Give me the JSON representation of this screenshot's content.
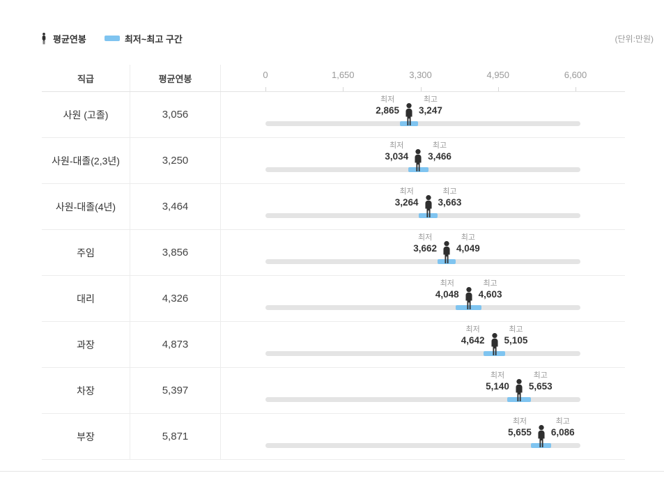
{
  "legend": {
    "avg_label": "평균연봉",
    "range_label": "최저~최고 구간",
    "unit_label": "(단위:만원)"
  },
  "table": {
    "col_position": "직급",
    "col_avg": "평균연봉"
  },
  "chart_data": {
    "type": "bar",
    "variant": "horizontal-range-with-average-marker",
    "unit": "만원",
    "min_label": "최저",
    "max_label": "최고",
    "axis": {
      "min": 0,
      "max": 6600,
      "ticks": [
        0,
        1650,
        3300,
        4950,
        6600
      ],
      "tick_labels": [
        "0",
        "1,650",
        "3,300",
        "4,950",
        "6,600"
      ]
    },
    "rows": [
      {
        "position": "사원 (고졸)",
        "avg": 3056,
        "avg_text": "3,056",
        "min": 2865,
        "min_text": "2,865",
        "max": 3247,
        "max_text": "3,247"
      },
      {
        "position": "사원-대졸(2,3년)",
        "avg": 3250,
        "avg_text": "3,250",
        "min": 3034,
        "min_text": "3,034",
        "max": 3466,
        "max_text": "3,466"
      },
      {
        "position": "사원-대졸(4년)",
        "avg": 3464,
        "avg_text": "3,464",
        "min": 3264,
        "min_text": "3,264",
        "max": 3663,
        "max_text": "3,663"
      },
      {
        "position": "주임",
        "avg": 3856,
        "avg_text": "3,856",
        "min": 3662,
        "min_text": "3,662",
        "max": 4049,
        "max_text": "4,049"
      },
      {
        "position": "대리",
        "avg": 4326,
        "avg_text": "4,326",
        "min": 4048,
        "min_text": "4,048",
        "max": 4603,
        "max_text": "4,603"
      },
      {
        "position": "과장",
        "avg": 4873,
        "avg_text": "4,873",
        "min": 4642,
        "min_text": "4,642",
        "max": 5105,
        "max_text": "5,105"
      },
      {
        "position": "차장",
        "avg": 5397,
        "avg_text": "5,397",
        "min": 5140,
        "min_text": "5,140",
        "max": 5653,
        "max_text": "5,653"
      },
      {
        "position": "부장",
        "avg": 5871,
        "avg_text": "5,871",
        "min": 5655,
        "min_text": "5,655",
        "max": 6086,
        "max_text": "6,086"
      }
    ]
  },
  "colors": {
    "range_blue": "#7fc4f0",
    "track_gray": "#e4e4e4",
    "person_dark": "#2f2f2f"
  }
}
